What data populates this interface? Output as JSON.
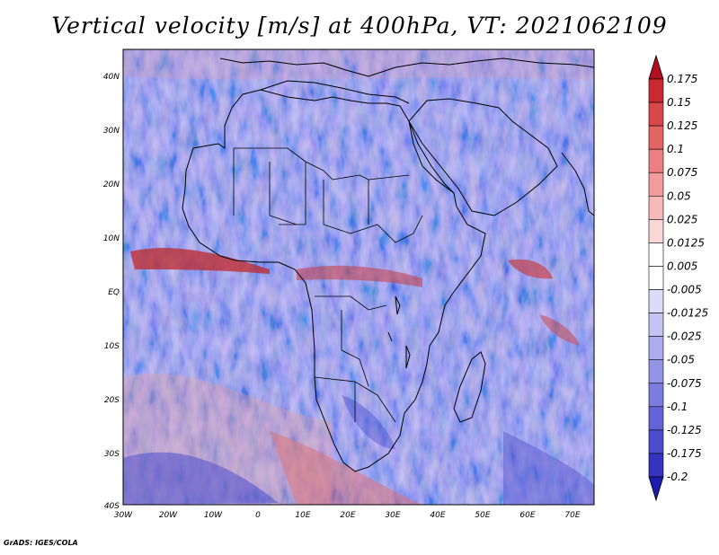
{
  "title": "Vertical velocity [m/s] at 400hPa, VT: 2021062109",
  "credit": "GrADS: IGES/COLA",
  "map": {
    "lat_labels": [
      "40N",
      "30N",
      "20N",
      "10N",
      "EQ",
      "10S",
      "20S",
      "30S",
      "40S"
    ],
    "lon_labels": [
      "30W",
      "20W",
      "10W",
      "0",
      "10E",
      "20E",
      "30E",
      "40E",
      "50E",
      "60E",
      "70E"
    ],
    "lat_range": [
      -40,
      45
    ],
    "lon_range": [
      -30,
      75
    ]
  },
  "colorbar": {
    "labels": [
      "0.175",
      "0.15",
      "0.125",
      "0.1",
      "0.075",
      "0.05",
      "0.025",
      "0.0125",
      "0.005",
      "-0.005",
      "-0.0125",
      "-0.025",
      "-0.05",
      "-0.075",
      "-0.1",
      "-0.125",
      "-0.175",
      "-0.2"
    ],
    "colors": [
      "#b01020",
      "#c82a30",
      "#d84848",
      "#e46464",
      "#ec8080",
      "#f29c9c",
      "#f6baba",
      "#fad6d6",
      "#ffffff",
      "#ffffff",
      "#dcdcfa",
      "#c4c4f4",
      "#acacee",
      "#9494e6",
      "#7c7ce0",
      "#6464d8",
      "#4c4cce",
      "#3434c0",
      "#1c1cae"
    ]
  }
}
